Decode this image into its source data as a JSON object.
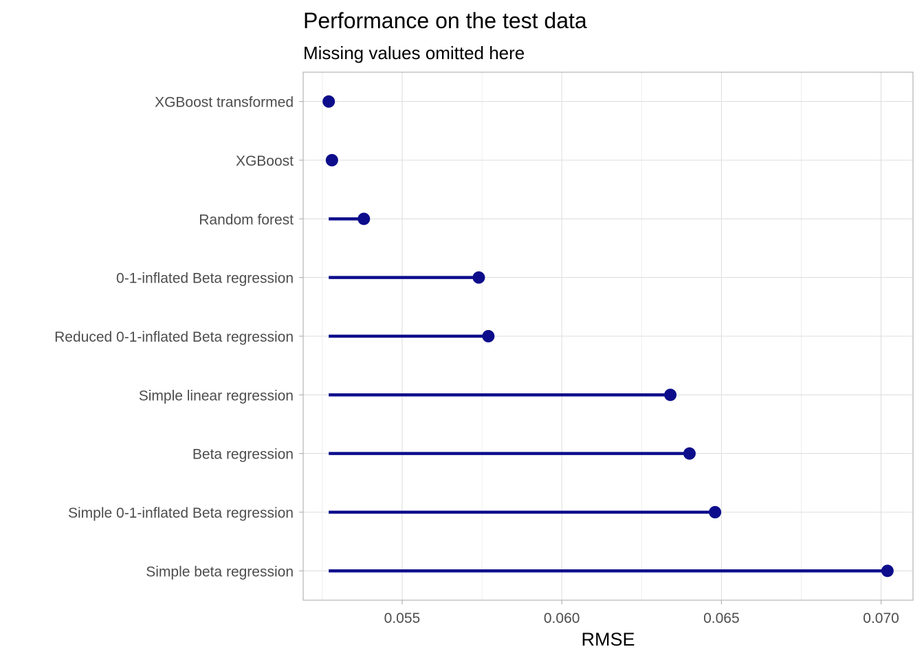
{
  "chart_data": {
    "type": "lollipop",
    "title": "Performance on the test data",
    "subtitle": "Missing values omitted here",
    "xlabel": "RMSE",
    "ylabel": "",
    "xlim": [
      0.0519,
      0.071
    ],
    "x_ticks": [
      {
        "value": 0.055,
        "label": "0.055"
      },
      {
        "value": 0.06,
        "label": "0.060"
      },
      {
        "value": 0.065,
        "label": "0.065"
      },
      {
        "value": 0.07,
        "label": "0.070"
      }
    ],
    "baseline": 0.0527,
    "grid": true,
    "color": "#0d0d8c",
    "categories": [
      "XGBoost transformed",
      "XGBoost",
      "Random forest",
      "0-1-inflated Beta regression",
      "Reduced 0-1-inflated Beta regression",
      "Simple linear regression",
      "Beta regression",
      "Simple 0-1-inflated Beta regression",
      "Simple beta regression"
    ],
    "values": [
      0.0527,
      0.0528,
      0.0538,
      0.0574,
      0.0577,
      0.0634,
      0.064,
      0.0648,
      0.0702
    ]
  }
}
